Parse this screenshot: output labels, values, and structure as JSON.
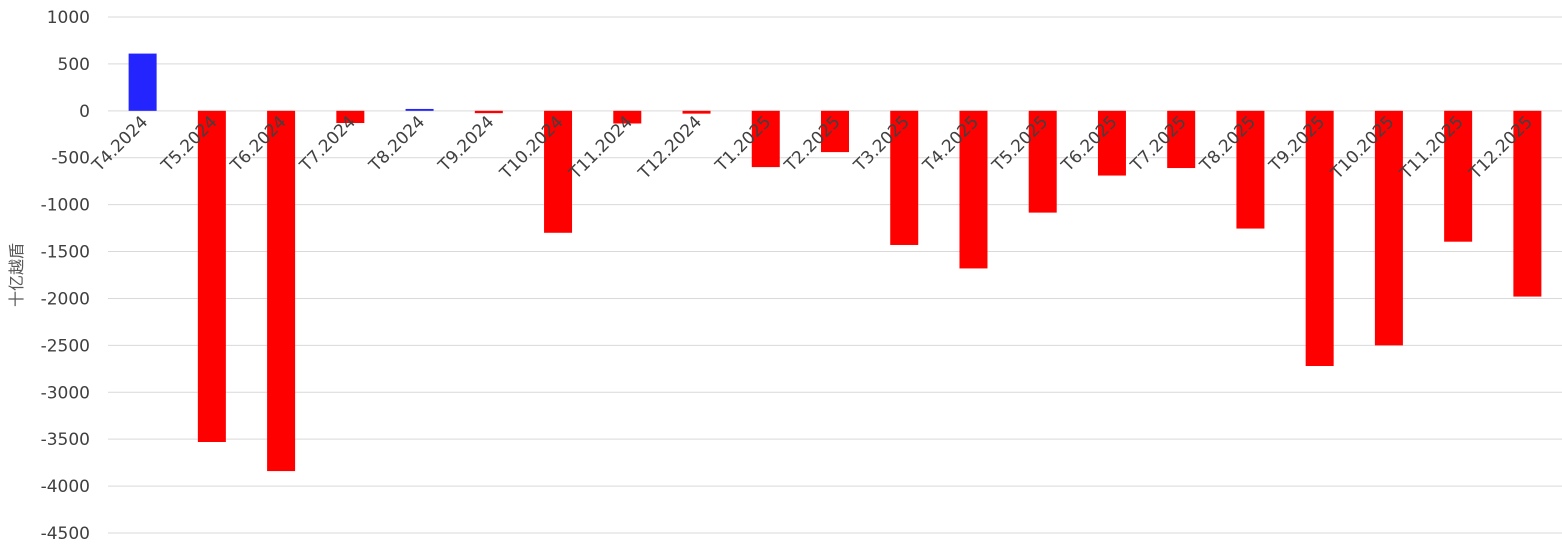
{
  "chart_data": {
    "type": "bar",
    "title": "",
    "xlabel": "",
    "ylabel": "十亿越盾",
    "ylim": [
      -4500,
      1000
    ],
    "yticks": [
      1000,
      500,
      0,
      -500,
      -1000,
      -1500,
      -2000,
      -2500,
      -3000,
      -3500,
      -4000,
      -4500
    ],
    "grid": true,
    "legend": "none",
    "positive_color": "#2424ff",
    "negative_color": "#ff0000",
    "categories": [
      "T4.2024",
      "T5.2024",
      "T6.2024",
      "T7.2024",
      "T8.2024",
      "T9.2024",
      "T10.2024",
      "T11.2024",
      "T12.2024",
      "T1.2025",
      "T2.2025",
      "T3.2025",
      "T4.2025",
      "T5.2025",
      "T6.2025",
      "T7.2025",
      "T8.2025",
      "T9.2025",
      "T10.2025",
      "T11.2025",
      "T12.2025"
    ],
    "values": [
      610,
      -3530,
      -3840,
      -130,
      20,
      -25,
      -1300,
      -135,
      -30,
      -600,
      -440,
      -1430,
      -1680,
      -1085,
      -690,
      -610,
      -1255,
      -2720,
      -2500,
      -1395,
      -1980
    ]
  }
}
